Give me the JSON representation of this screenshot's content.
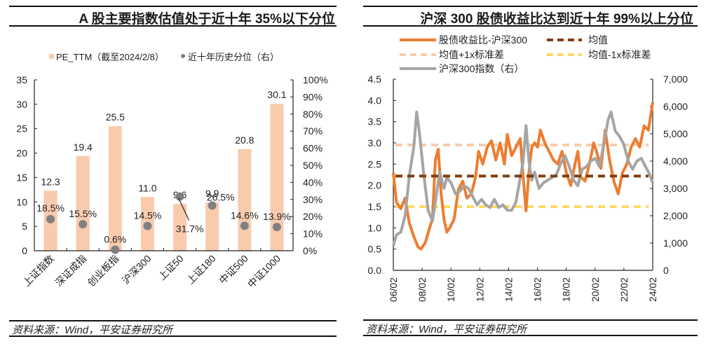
{
  "left_panel": {
    "title": "A 股主要指数估值处于近十年 35%以下分位",
    "source": "资料来源：Wind，平安证券研究所"
  },
  "right_panel": {
    "title": "沪深 300 股债收益比达到近十年 99%以上分位",
    "source": "资料来源：Wind，平安证券研究所"
  },
  "chart_data": [
    {
      "type": "bar",
      "title": "A 股主要指数估值处于近十年 35%以下分位",
      "categories": [
        "上证指数",
        "深证成指",
        "创业板指",
        "沪深300",
        "上证50",
        "上证180",
        "中证500",
        "中证1000"
      ],
      "series": [
        {
          "name": "PE_TTM（截至2024/2/8）",
          "type": "bar",
          "axis": "left",
          "color": "#F8CBAD",
          "values": [
            12.3,
            19.4,
            25.5,
            11.0,
            9.6,
            9.9,
            20.8,
            30.1
          ],
          "labels": [
            "12.3",
            "19.4",
            "25.5",
            "11.0",
            "9.6",
            "9.9",
            "20.8",
            "30.1"
          ]
        },
        {
          "name": "近十年历史分位（右）",
          "type": "scatter",
          "axis": "right",
          "color": "#808080",
          "values": [
            18.5,
            15.5,
            0.6,
            14.5,
            31.7,
            26.5,
            14.6,
            13.9
          ],
          "labels": [
            "18.5%",
            "15.5%",
            "0.6%",
            "14.5%",
            "31.7%",
            "26.5%",
            "14.6%",
            "13.9%"
          ]
        }
      ],
      "legend": [
        "PE_TTM（截至2024/2/8）",
        "近十年历史分位（右）"
      ],
      "legend_position": "top",
      "ylim": [
        0,
        35
      ],
      "yticks": [
        "0",
        "5",
        "10",
        "15",
        "20",
        "25",
        "30",
        "35"
      ],
      "y2lim": [
        0,
        100
      ],
      "y2ticks": [
        "0%",
        "10%",
        "20%",
        "30%",
        "40%",
        "50%",
        "60%",
        "70%",
        "80%",
        "90%",
        "100%"
      ],
      "grid": false
    },
    {
      "type": "line",
      "title": "沪深 300 股债收益比达到近十年 99%以上分位",
      "xlabel": "",
      "ylabel": "",
      "xticks": [
        "06/02",
        "08/02",
        "10/02",
        "12/02",
        "14/02",
        "16/02",
        "18/02",
        "20/02",
        "22/02",
        "24/02"
      ],
      "xrange": [
        2006.08,
        2024.1
      ],
      "ylim": [
        0,
        4.5
      ],
      "yticks": [
        "0.0",
        "0.5",
        "1.0",
        "1.5",
        "2.0",
        "2.5",
        "3.0",
        "3.5",
        "4.0",
        "4.5"
      ],
      "y2lim": [
        0,
        7000
      ],
      "y2ticks": [
        "0",
        "1,000",
        "2,000",
        "3,000",
        "4,000",
        "5,000",
        "6,000",
        "7,000"
      ],
      "legend": [
        "股债收益比-沪深300",
        "均值",
        "均值+1x标准差",
        "均值-1x标准差",
        "沪深300指数（右）"
      ],
      "legend_position": "top",
      "grid": false,
      "series": [
        {
          "name": "股债收益比-沪深300",
          "axis": "left",
          "color": "#ED7D31",
          "style": "solid",
          "x": [
            2006.08,
            2006.3,
            2006.6,
            2006.9,
            2007.2,
            2007.5,
            2007.8,
            2008.0,
            2008.3,
            2008.6,
            2008.8,
            2009.0,
            2009.2,
            2009.4,
            2009.6,
            2009.8,
            2010.0,
            2010.3,
            2010.6,
            2010.9,
            2011.2,
            2011.5,
            2011.8,
            2012.0,
            2012.3,
            2012.6,
            2012.9,
            2013.2,
            2013.5,
            2013.8,
            2014.0,
            2014.3,
            2014.6,
            2014.9,
            2015.1,
            2015.3,
            2015.5,
            2015.7,
            2015.9,
            2016.1,
            2016.3,
            2016.6,
            2016.9,
            2017.2,
            2017.5,
            2017.8,
            2018.1,
            2018.4,
            2018.7,
            2018.9,
            2019.1,
            2019.4,
            2019.7,
            2020.0,
            2020.2,
            2020.5,
            2020.8,
            2021.1,
            2021.4,
            2021.7,
            2022.0,
            2022.3,
            2022.6,
            2022.9,
            2023.2,
            2023.5,
            2023.8,
            2024.1
          ],
          "values": [
            2.3,
            1.6,
            1.45,
            1.7,
            1.1,
            0.8,
            0.55,
            0.5,
            0.65,
            1.0,
            1.2,
            2.6,
            2.85,
            1.8,
            1.2,
            0.9,
            1.0,
            1.2,
            1.9,
            2.1,
            1.7,
            1.8,
            2.2,
            2.8,
            2.5,
            2.9,
            3.05,
            2.6,
            3.0,
            2.5,
            3.2,
            2.7,
            2.9,
            3.1,
            2.2,
            1.4,
            2.3,
            2.9,
            3.0,
            2.9,
            3.3,
            3.0,
            2.8,
            2.6,
            2.5,
            2.8,
            2.3,
            2.0,
            2.5,
            2.8,
            2.2,
            2.1,
            2.5,
            3.0,
            2.8,
            2.4,
            3.3,
            2.6,
            2.1,
            1.8,
            2.3,
            2.5,
            2.9,
            3.1,
            2.9,
            3.4,
            3.3,
            3.95
          ]
        },
        {
          "name": "均值",
          "axis": "left",
          "color": "#843C0C",
          "style": "dashed",
          "value": 2.22
        },
        {
          "name": "均值+1x标准差",
          "axis": "left",
          "color": "#F8CBAD",
          "style": "dashed",
          "value": 2.95
        },
        {
          "name": "均值-1x标准差",
          "axis": "left",
          "color": "#FFD966",
          "style": "dashed",
          "value": 1.5
        },
        {
          "name": "沪深300指数（右）",
          "axis": "right",
          "color": "#A5A5A5",
          "style": "solid",
          "x": [
            2006.08,
            2006.3,
            2006.6,
            2006.9,
            2007.2,
            2007.5,
            2007.7,
            2007.9,
            2008.2,
            2008.5,
            2008.8,
            2009.0,
            2009.3,
            2009.6,
            2009.8,
            2010.1,
            2010.4,
            2010.7,
            2011.0,
            2011.3,
            2011.6,
            2011.9,
            2012.2,
            2012.5,
            2012.8,
            2013.1,
            2013.4,
            2013.7,
            2014.0,
            2014.3,
            2014.6,
            2014.9,
            2015.1,
            2015.3,
            2015.5,
            2015.7,
            2015.9,
            2016.2,
            2016.5,
            2016.8,
            2017.1,
            2017.4,
            2017.7,
            2018.0,
            2018.3,
            2018.6,
            2018.9,
            2019.2,
            2019.5,
            2019.8,
            2020.1,
            2020.4,
            2020.7,
            2021.0,
            2021.2,
            2021.5,
            2021.8,
            2022.1,
            2022.4,
            2022.7,
            2023.0,
            2023.3,
            2023.6,
            2023.9,
            2024.1
          ],
          "values": [
            900,
            1300,
            1400,
            2000,
            3500,
            4500,
            5800,
            5000,
            3500,
            2200,
            1800,
            2500,
            3600,
            3000,
            3400,
            3200,
            2800,
            2900,
            3100,
            3000,
            2700,
            2400,
            2600,
            2400,
            2300,
            2600,
            2300,
            2400,
            2200,
            2200,
            2500,
            3400,
            4000,
            5300,
            4000,
            3300,
            3600,
            3000,
            3200,
            3300,
            3400,
            3500,
            3900,
            4200,
            3800,
            3300,
            3100,
            3700,
            3800,
            4000,
            4100,
            3800,
            4600,
            5500,
            5800,
            5100,
            4900,
            4600,
            4000,
            3700,
            4000,
            4100,
            3800,
            3500,
            3200
          ]
        }
      ]
    }
  ]
}
